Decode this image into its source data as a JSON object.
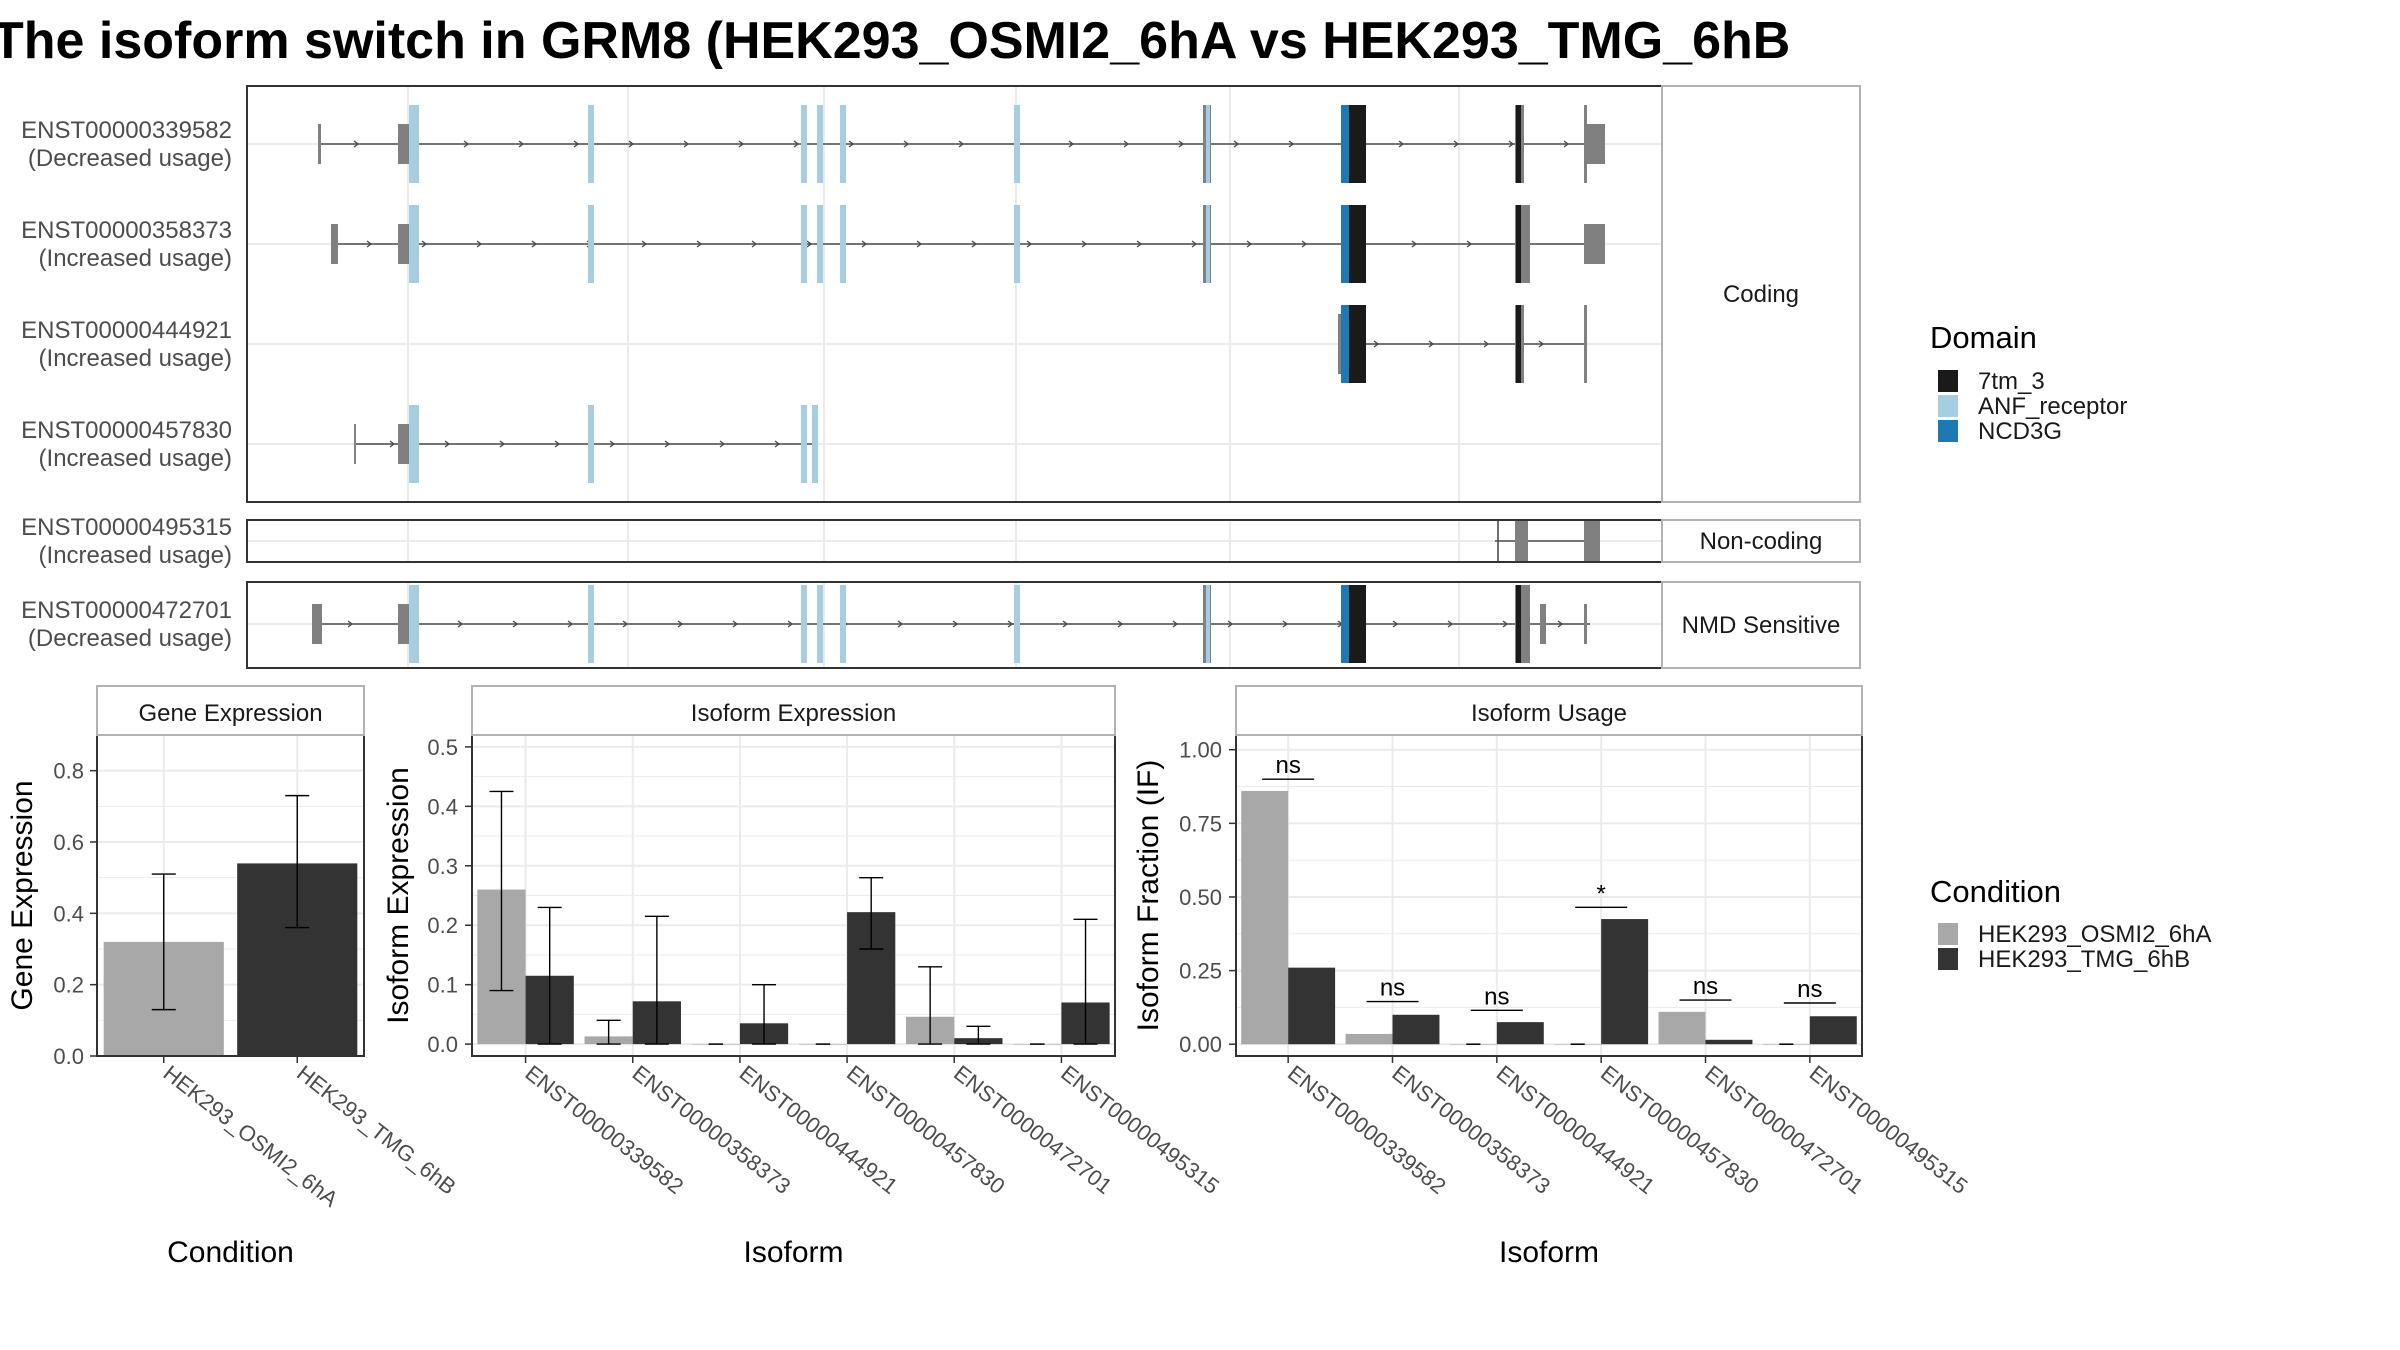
{
  "title": "The isoform switch in GRM8 (HEK293_OSMI2_6hA vs HEK293_TMG_6hB",
  "colors": {
    "exon": "#808080",
    "intron": "#4d4d4d",
    "grid": "#ebebeb",
    "panel_border": "#333333",
    "strip_border": "#b3b3b3",
    "condA": "#a8a8a8",
    "condB": "#333333",
    "domain_7tm_3": "#1a1a1a",
    "domain_ANF_receptor": "#a6cee3",
    "domain_NCD3G": "#1f78b4"
  },
  "legends": {
    "domain": {
      "title": "Domain",
      "items": [
        {
          "label": "7tm_3",
          "color": "#1a1a1a"
        },
        {
          "label": "ANF_receptor",
          "color": "#a6cee3"
        },
        {
          "label": "NCD3G",
          "color": "#1f78b4"
        }
      ]
    },
    "condition": {
      "title": "Condition",
      "items": [
        {
          "label": "HEK293_OSMI2_6hA",
          "color": "#a8a8a8"
        },
        {
          "label": "HEK293_TMG_6hB",
          "color": "#333333"
        }
      ]
    }
  },
  "transcript_panel": {
    "groups": [
      {
        "label": "Coding",
        "transcripts": [
          {
            "id": "ENST00000339582",
            "usage": "(Decreased usage)"
          },
          {
            "id": "ENST00000358373",
            "usage": "(Increased usage)"
          },
          {
            "id": "ENST00000444921",
            "usage": "(Increased usage)"
          },
          {
            "id": "ENST00000457830",
            "usage": "(Increased usage)"
          }
        ]
      },
      {
        "label": "Non-coding",
        "transcripts": [
          {
            "id": "ENST00000495315",
            "usage": "(Increased usage)"
          }
        ]
      },
      {
        "label": "NMD Sensitive",
        "transcripts": [
          {
            "id": "ENST00000472701",
            "usage": "(Decreased usage)"
          }
        ]
      }
    ]
  },
  "chart_data": [
    {
      "type": "bar",
      "title": "Gene Expression",
      "xlabel": "Condition",
      "ylabel": "Gene Expression",
      "categories": [
        "HEK293_OSMI2_6hA",
        "HEK293_TMG_6hB"
      ],
      "values": [
        0.32,
        0.54
      ],
      "error_low": [
        0.13,
        0.36
      ],
      "error_high": [
        0.51,
        0.73
      ],
      "ylim": [
        0,
        0.9
      ],
      "yticks": [
        "0.0",
        "0.2",
        "0.4",
        "0.6",
        "0.8"
      ],
      "ytick_values": [
        0,
        0.2,
        0.4,
        0.6,
        0.8
      ]
    },
    {
      "type": "bar",
      "title": "Isoform Expression",
      "xlabel": "Isoform",
      "ylabel": "Isoform Expression",
      "categories": [
        "ENST00000339582",
        "ENST00000358373",
        "ENST00000444921",
        "ENST00000457830",
        "ENST00000472701",
        "ENST00000495315"
      ],
      "series": [
        {
          "name": "HEK293_OSMI2_6hA",
          "values": [
            0.26,
            0.013,
            0.0,
            0.0,
            0.046,
            0.0
          ],
          "error_low": [
            0.09,
            0.0,
            0.0,
            0.0,
            0.0,
            0.0
          ],
          "error_high": [
            0.425,
            0.04,
            0.0,
            0.0,
            0.13,
            0.0
          ]
        },
        {
          "name": "HEK293_TMG_6hB",
          "values": [
            0.115,
            0.072,
            0.035,
            0.222,
            0.01,
            0.07
          ],
          "error_low": [
            0.0,
            0.0,
            0.0,
            0.16,
            0.0,
            0.0
          ],
          "error_high": [
            0.23,
            0.215,
            0.1,
            0.28,
            0.03,
            0.21
          ]
        }
      ],
      "ylim": [
        -0.02,
        0.52
      ],
      "yticks": [
        "0.0",
        "0.1",
        "0.2",
        "0.3",
        "0.4",
        "0.5"
      ],
      "ytick_values": [
        0,
        0.1,
        0.2,
        0.3,
        0.4,
        0.5
      ]
    },
    {
      "type": "bar",
      "title": "Isoform Usage",
      "xlabel": "Isoform",
      "ylabel": "Isoform Fraction (IF)",
      "categories": [
        "ENST00000339582",
        "ENST00000358373",
        "ENST00000444921",
        "ENST00000457830",
        "ENST00000472701",
        "ENST00000495315"
      ],
      "series": [
        {
          "name": "HEK293_OSMI2_6hA",
          "values": [
            0.86,
            0.035,
            0.0,
            0.0,
            0.11,
            0.0
          ]
        },
        {
          "name": "HEK293_TMG_6hB",
          "values": [
            0.26,
            0.1,
            0.075,
            0.425,
            0.015,
            0.095
          ]
        }
      ],
      "significance": [
        "ns",
        "ns",
        "ns",
        "*",
        "ns",
        "ns"
      ],
      "significance_y": [
        0.9,
        0.145,
        0.115,
        0.465,
        0.15,
        0.14
      ],
      "ylim": [
        -0.04,
        1.05
      ],
      "yticks": [
        "0.00",
        "0.25",
        "0.50",
        "0.75",
        "1.00"
      ],
      "ytick_values": [
        0,
        0.25,
        0.5,
        0.75,
        1.0
      ]
    }
  ]
}
